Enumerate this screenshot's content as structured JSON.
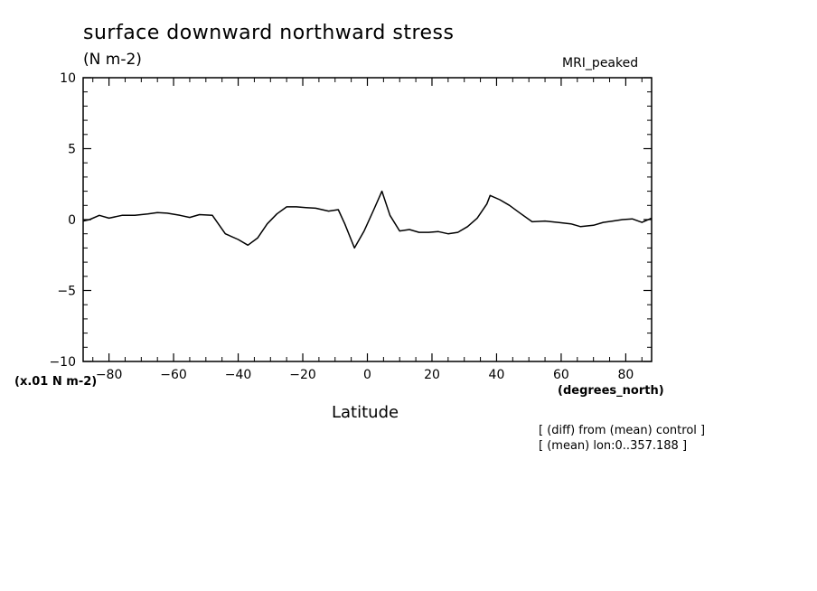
{
  "chart_data": {
    "type": "line",
    "title": "surface downward northward stress",
    "subtitle": "(N m-2)",
    "model_label": "MRI_peaked",
    "scale_note": "(x.01 N m-2)",
    "xlabel": "Latitude",
    "xunits": "(degrees_north)",
    "annotations": [
      "[ (diff) from (mean) control ]",
      "[ (mean) lon:0..357.188 ]"
    ],
    "xlim": [
      -88,
      88
    ],
    "ylim": [
      -10,
      10
    ],
    "x_ticks": [
      -80,
      -60,
      -40,
      -20,
      0,
      20,
      40,
      60,
      80
    ],
    "x_tick_labels": [
      "−80",
      "−60",
      "−40",
      "−20",
      "0",
      "20",
      "40",
      "60",
      "80"
    ],
    "y_ticks": [
      -10,
      -5,
      0,
      5,
      10
    ],
    "y_tick_labels": [
      "−10",
      "−5",
      "0",
      "5",
      "10"
    ],
    "grid": false,
    "series": [
      {
        "x": [
          -88,
          -86,
          -83,
          -80,
          -76,
          -72,
          -68,
          -65,
          -62,
          -58,
          -55,
          -52,
          -48,
          -44,
          -40,
          -37,
          -34,
          -31,
          -28,
          -25,
          -22,
          -19,
          -16,
          -12,
          -9,
          -7,
          -4,
          -1,
          2,
          4.5,
          7,
          10,
          13,
          16,
          19,
          22,
          25,
          28,
          31,
          34,
          37,
          38,
          41,
          44,
          47,
          51,
          55,
          59,
          63,
          66,
          70,
          73,
          76,
          79,
          82,
          85,
          88
        ],
        "y": [
          -0.1,
          0.0,
          0.3,
          0.1,
          0.3,
          0.3,
          0.4,
          0.5,
          0.45,
          0.3,
          0.15,
          0.35,
          0.3,
          -1.0,
          -1.4,
          -1.8,
          -1.3,
          -0.3,
          0.4,
          0.9,
          0.9,
          0.85,
          0.8,
          0.6,
          0.7,
          -0.3,
          -2.0,
          -0.8,
          0.7,
          2.0,
          0.3,
          -0.8,
          -0.7,
          -0.9,
          -0.9,
          -0.85,
          -1.0,
          -0.9,
          -0.5,
          0.1,
          1.1,
          1.7,
          1.4,
          1.0,
          0.5,
          -0.15,
          -0.1,
          -0.2,
          -0.3,
          -0.5,
          -0.4,
          -0.2,
          -0.1,
          0.0,
          0.05,
          -0.2,
          0.1
        ]
      }
    ]
  }
}
